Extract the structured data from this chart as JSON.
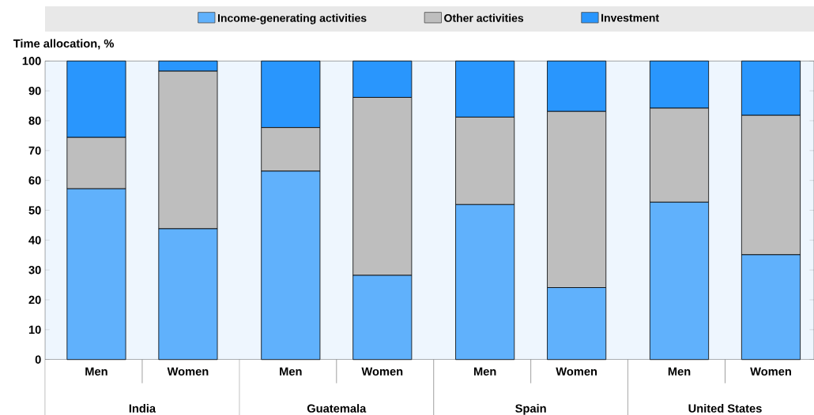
{
  "chart_data": {
    "type": "bar",
    "stacked": true,
    "ylabel": "Time allocation, %",
    "categories": [
      "Men",
      "Women",
      "Men",
      "Women",
      "Men",
      "Women",
      "Men",
      "Women"
    ],
    "annotations": [
      "India",
      "Guatemala",
      "Spain",
      "United States"
    ],
    "series": [
      {
        "name": "Income-generating activities",
        "color": "#60b1fc",
        "values": [
          57.2,
          43.8,
          63.1,
          28.2,
          51.9,
          24.1,
          52.7,
          35.1
        ]
      },
      {
        "name": "Other activities",
        "color": "#bebebe",
        "values": [
          17.2,
          52.8,
          14.6,
          59.6,
          29.3,
          59.0,
          31.5,
          46.7
        ]
      },
      {
        "name": "Investment",
        "color": "#2996fd",
        "values": [
          25.6,
          3.4,
          22.3,
          12.2,
          18.8,
          16.9,
          15.8,
          18.2
        ]
      }
    ],
    "ylim": [
      0,
      100
    ],
    "yticks": [
      0,
      10,
      20,
      30,
      40,
      50,
      60,
      70,
      80,
      90,
      100
    ],
    "grid": false,
    "legend": "top"
  }
}
